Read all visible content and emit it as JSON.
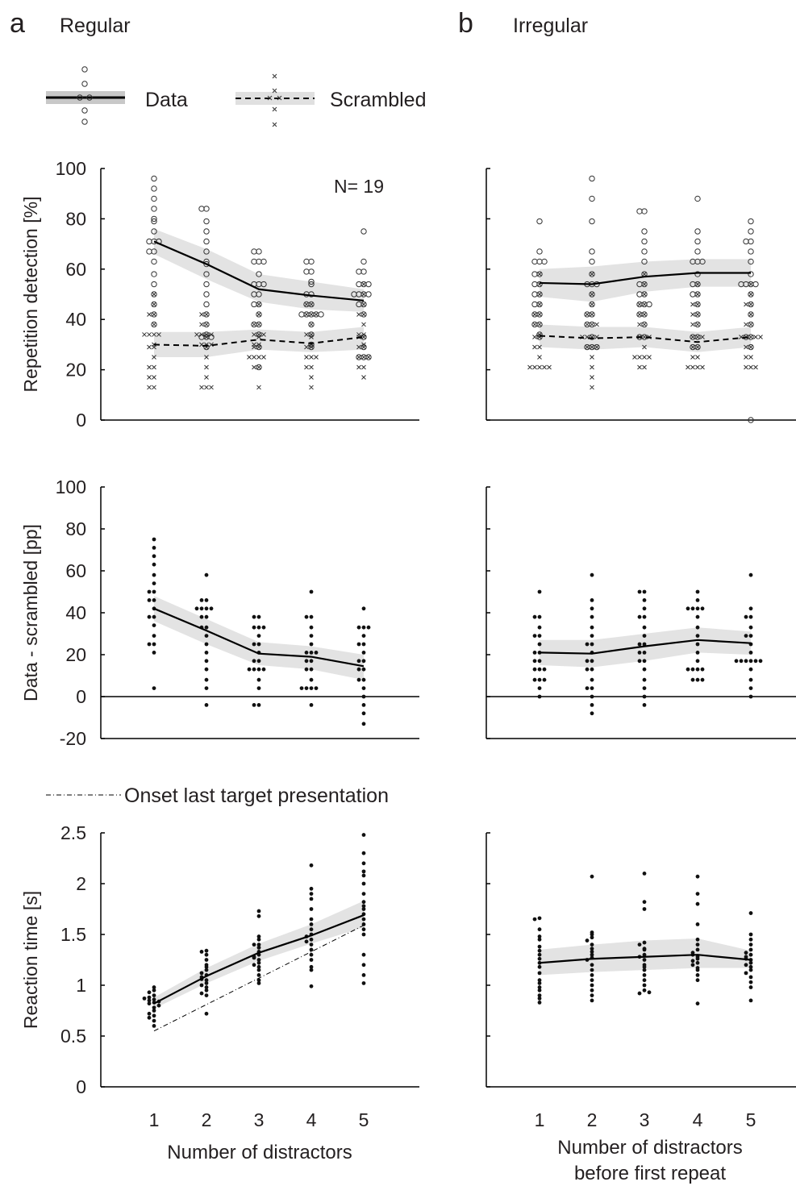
{
  "figure": {
    "panel_a": {
      "letter": "a",
      "title": "Regular"
    },
    "panel_b": {
      "letter": "b",
      "title": "Irregular"
    },
    "legend": {
      "data_label": "Data",
      "scrambled_label": "Scrambled",
      "onset_label": "Onset last target presentation"
    },
    "annotation_n": "N= 19",
    "xlabel_a": "Number of distractors",
    "xlabel_b_line1": "Number of distractors",
    "xlabel_b_line2": "before first repeat"
  },
  "chart_data": [
    {
      "id": "a_top",
      "panel": "a",
      "type": "line",
      "ylabel": "Repetition detection [%]",
      "ylim": [
        0,
        100
      ],
      "yticks": [
        0,
        20,
        40,
        60,
        80,
        100
      ],
      "x": [
        1,
        2,
        3,
        4,
        5
      ],
      "series": [
        {
          "name": "Data",
          "values": [
            71,
            62,
            52,
            49.5,
            47.5
          ],
          "ci_low": [
            66,
            56,
            47,
            44,
            43
          ],
          "ci_high": [
            76,
            68,
            58,
            55,
            52
          ]
        },
        {
          "name": "Scrambled",
          "values": [
            30,
            29.5,
            32,
            30.5,
            33
          ],
          "ci_low": [
            25,
            25,
            28,
            27,
            28
          ],
          "ci_high": [
            35,
            35,
            36,
            35,
            37
          ]
        }
      ],
      "points_data": [
        [
          96,
          92,
          88,
          84,
          80,
          79,
          75,
          71,
          71,
          71,
          67,
          67,
          63,
          58,
          54,
          50,
          46,
          42,
          38
        ],
        [
          84,
          84,
          79,
          75,
          71,
          67,
          63,
          62,
          58,
          54,
          50,
          46,
          42,
          38,
          34,
          33,
          33,
          33,
          29
        ],
        [
          67,
          67,
          63,
          63,
          63,
          58,
          54,
          54,
          54,
          50,
          50,
          46,
          46,
          42,
          38,
          38,
          34,
          29,
          21
        ],
        [
          63,
          63,
          59,
          59,
          55,
          54,
          50,
          50,
          46,
          46,
          42,
          42,
          42,
          42,
          42,
          38,
          34,
          30,
          29
        ],
        [
          75,
          63,
          59,
          59,
          54,
          54,
          54,
          50,
          50,
          50,
          50,
          46,
          46,
          42,
          33,
          29,
          25,
          25,
          25
        ]
      ],
      "points_scrambled": [
        [
          50,
          46,
          42,
          42,
          38,
          34,
          34,
          34,
          34,
          30,
          29,
          25,
          21,
          21,
          17,
          17,
          13,
          13,
          29
        ],
        [
          42,
          42,
          38,
          38,
          34,
          34,
          34,
          34,
          30,
          30,
          30,
          25,
          21,
          17,
          13,
          13,
          13,
          29,
          33
        ],
        [
          46,
          42,
          38,
          34,
          34,
          34,
          30,
          30,
          29,
          25,
          25,
          25,
          21,
          21,
          13,
          38,
          33,
          29,
          25
        ],
        [
          46,
          46,
          42,
          38,
          34,
          34,
          30,
          29,
          25,
          25,
          21,
          21,
          17,
          13,
          42,
          42,
          33,
          29,
          25
        ],
        [
          54,
          50,
          46,
          42,
          42,
          38,
          34,
          34,
          30,
          29,
          25,
          25,
          21,
          21,
          17,
          33,
          33,
          29,
          25
        ]
      ]
    },
    {
      "id": "b_top",
      "panel": "b",
      "type": "line",
      "ylabel": "",
      "ylim": [
        0,
        100
      ],
      "x": [
        1,
        2,
        3,
        4,
        5
      ],
      "series": [
        {
          "name": "Data",
          "values": [
            54.5,
            54,
            57,
            58.5,
            58.5
          ],
          "ci_low": [
            49,
            47,
            51,
            53,
            53
          ],
          "ci_high": [
            60,
            61,
            63,
            64,
            64
          ]
        },
        {
          "name": "Scrambled",
          "values": [
            33.5,
            32.5,
            33,
            31,
            33
          ],
          "ci_low": [
            29,
            28,
            29,
            27,
            29
          ],
          "ci_high": [
            38,
            37,
            37,
            35,
            37
          ]
        }
      ],
      "points_data": [
        [
          79,
          67,
          63,
          63,
          63,
          58,
          58,
          54,
          54,
          50,
          50,
          46,
          46,
          42,
          42,
          38,
          38,
          34,
          33
        ],
        [
          96,
          88,
          79,
          67,
          63,
          58,
          54,
          54,
          54,
          50,
          46,
          42,
          42,
          38,
          38,
          33,
          29,
          29,
          29
        ],
        [
          83,
          83,
          75,
          71,
          67,
          63,
          58,
          54,
          54,
          50,
          50,
          46,
          46,
          46,
          42,
          42,
          38,
          33,
          33
        ],
        [
          88,
          75,
          71,
          67,
          63,
          63,
          63,
          58,
          54,
          54,
          50,
          50,
          46,
          42,
          38,
          33,
          33,
          29,
          29
        ],
        [
          79,
          75,
          71,
          71,
          67,
          63,
          58,
          54,
          54,
          54,
          54,
          50,
          46,
          42,
          38,
          33,
          33,
          29,
          0
        ]
      ],
      "points_scrambled": [
        [
          58,
          54,
          50,
          46,
          42,
          38,
          34,
          33,
          29,
          25,
          21,
          21,
          21,
          21,
          21,
          42,
          38,
          33,
          29
        ],
        [
          58,
          50,
          46,
          42,
          38,
          38,
          33,
          33,
          29,
          29,
          25,
          21,
          17,
          13,
          42,
          38,
          33,
          29,
          33
        ],
        [
          58,
          54,
          50,
          46,
          42,
          38,
          38,
          33,
          33,
          29,
          25,
          25,
          25,
          25,
          21,
          21,
          46,
          42,
          33
        ],
        [
          54,
          50,
          46,
          42,
          38,
          33,
          33,
          29,
          25,
          25,
          21,
          21,
          21,
          21,
          46,
          42,
          38,
          33,
          29
        ],
        [
          54,
          50,
          46,
          42,
          38,
          33,
          33,
          33,
          29,
          25,
          21,
          21,
          46,
          38,
          33,
          29,
          25,
          33,
          21
        ]
      ]
    },
    {
      "id": "a_mid",
      "panel": "a",
      "type": "line",
      "ylabel": "Data - scrambled [pp]",
      "ylim": [
        -20,
        100
      ],
      "yticks": [
        -20,
        0,
        20,
        40,
        60,
        80,
        100
      ],
      "x": [
        1,
        2,
        3,
        4,
        5
      ],
      "series": [
        {
          "name": "Data - scrambled",
          "values": [
            42,
            31.5,
            20.5,
            19,
            14.5
          ],
          "ci_low": [
            36,
            25,
            15,
            13,
            8
          ],
          "ci_high": [
            48,
            37,
            26,
            24,
            20
          ]
        }
      ],
      "points": [
        [
          75,
          71,
          67,
          63,
          58,
          54,
          50,
          50,
          46,
          42,
          38,
          38,
          34,
          29,
          25,
          25,
          21,
          4,
          46
        ],
        [
          58,
          46,
          46,
          42,
          42,
          42,
          42,
          38,
          38,
          33,
          29,
          25,
          21,
          17,
          13,
          8,
          4,
          -4,
          33
        ],
        [
          38,
          38,
          33,
          33,
          33,
          29,
          25,
          25,
          21,
          17,
          17,
          13,
          13,
          13,
          13,
          8,
          4,
          -4,
          -4
        ],
        [
          50,
          38,
          38,
          33,
          29,
          25,
          21,
          21,
          17,
          17,
          13,
          13,
          8,
          4,
          4,
          4,
          4,
          -4,
          21
        ],
        [
          42,
          33,
          33,
          29,
          25,
          25,
          21,
          17,
          13,
          8,
          4,
          0,
          -4,
          -8,
          -13,
          17,
          13,
          33,
          8
        ]
      ]
    },
    {
      "id": "b_mid",
      "panel": "b",
      "type": "line",
      "ylabel": "",
      "ylim": [
        -20,
        100
      ],
      "x": [
        1,
        2,
        3,
        4,
        5
      ],
      "series": [
        {
          "name": "Data - scrambled",
          "values": [
            21,
            20.5,
            24,
            27,
            25.5
          ],
          "ci_low": [
            15,
            14,
            17,
            21,
            20
          ],
          "ci_high": [
            27,
            27,
            30,
            33,
            31
          ]
        }
      ],
      "points": [
        [
          50,
          38,
          38,
          33,
          29,
          29,
          25,
          21,
          21,
          17,
          17,
          13,
          13,
          13,
          8,
          8,
          8,
          4,
          0
        ],
        [
          58,
          46,
          42,
          38,
          33,
          29,
          25,
          25,
          21,
          17,
          17,
          13,
          13,
          8,
          4,
          4,
          0,
          -4,
          -8
        ],
        [
          50,
          50,
          46,
          42,
          38,
          33,
          29,
          25,
          25,
          21,
          21,
          17,
          17,
          13,
          8,
          4,
          0,
          -4,
          38
        ],
        [
          50,
          46,
          42,
          42,
          42,
          42,
          38,
          33,
          29,
          25,
          21,
          17,
          13,
          13,
          13,
          13,
          8,
          8,
          8
        ],
        [
          58,
          42,
          38,
          38,
          33,
          29,
          29,
          25,
          21,
          17,
          17,
          17,
          17,
          17,
          17,
          13,
          8,
          4,
          0
        ]
      ]
    },
    {
      "id": "a_bot",
      "panel": "a",
      "type": "line",
      "ylabel": "Reaction time [s]",
      "ylim": [
        0,
        2.5
      ],
      "yticks": [
        0,
        0.5,
        1,
        1.5,
        2,
        2.5
      ],
      "x": [
        1,
        2,
        3,
        4,
        5
      ],
      "series": [
        {
          "name": "Data",
          "values": [
            0.82,
            1.09,
            1.32,
            1.49,
            1.69
          ],
          "ci_low": [
            0.77,
            1.02,
            1.24,
            1.41,
            1.57
          ],
          "ci_high": [
            0.88,
            1.17,
            1.41,
            1.6,
            1.83
          ]
        },
        {
          "name": "Onset last target presentation",
          "values": [
            0.55,
            0.81,
            1.07,
            1.33,
            1.59
          ]
        }
      ],
      "points": [
        [
          0.98,
          0.95,
          0.93,
          0.9,
          0.88,
          0.86,
          0.85,
          0.84,
          0.83,
          0.82,
          0.8,
          0.78,
          0.75,
          0.72,
          0.7,
          0.68,
          0.65,
          0.6,
          0.87
        ],
        [
          1.34,
          1.33,
          1.3,
          1.25,
          1.2,
          1.18,
          1.15,
          1.12,
          1.1,
          1.08,
          1.05,
          1.02,
          1.0,
          0.98,
          0.95,
          0.92,
          0.9,
          0.72,
          1.06
        ],
        [
          1.73,
          1.68,
          1.48,
          1.45,
          1.4,
          1.37,
          1.33,
          1.3,
          1.28,
          1.25,
          1.22,
          1.2,
          1.15,
          1.1,
          1.05,
          1.02,
          1.4,
          1.27,
          1.18
        ],
        [
          2.18,
          1.95,
          1.9,
          1.85,
          1.75,
          1.65,
          1.6,
          1.55,
          1.5,
          1.48,
          1.45,
          1.4,
          1.35,
          1.3,
          1.25,
          1.18,
          1.15,
          0.99,
          1.43
        ],
        [
          2.48,
          2.3,
          2.2,
          2.12,
          2.08,
          2.0,
          1.9,
          1.82,
          1.75,
          1.7,
          1.65,
          1.6,
          1.55,
          1.5,
          1.3,
          1.2,
          1.1,
          1.02,
          1.78
        ]
      ]
    },
    {
      "id": "b_bot",
      "panel": "b",
      "type": "line",
      "ylabel": "",
      "ylim": [
        0,
        2.5
      ],
      "x": [
        1,
        2,
        3,
        4,
        5
      ],
      "series": [
        {
          "name": "Data",
          "values": [
            1.22,
            1.26,
            1.28,
            1.3,
            1.25
          ],
          "ci_low": [
            1.1,
            1.13,
            1.15,
            1.17,
            1.17
          ],
          "ci_high": [
            1.35,
            1.4,
            1.44,
            1.46,
            1.34
          ]
        }
      ],
      "points": [
        [
          1.66,
          1.65,
          1.55,
          1.45,
          1.38,
          1.34,
          1.3,
          1.26,
          1.22,
          1.18,
          1.12,
          1.05,
          1.02,
          0.98,
          0.95,
          0.9,
          0.87,
          0.83,
          1.48
        ],
        [
          2.07,
          1.52,
          1.5,
          1.47,
          1.44,
          1.4,
          1.36,
          1.3,
          1.27,
          1.25,
          1.2,
          1.15,
          1.1,
          1.05,
          1.0,
          0.95,
          0.9,
          0.85,
          1.33
        ],
        [
          2.1,
          1.82,
          1.75,
          1.42,
          1.4,
          1.35,
          1.3,
          1.28,
          1.25,
          1.2,
          1.18,
          1.15,
          1.1,
          1.05,
          1.0,
          0.95,
          0.92,
          0.93,
          1.36
        ],
        [
          2.07,
          1.9,
          1.8,
          1.6,
          1.45,
          1.4,
          1.35,
          1.32,
          1.28,
          1.26,
          1.24,
          1.22,
          1.2,
          1.17,
          1.15,
          1.1,
          1.05,
          0.82,
          1.3
        ],
        [
          1.71,
          1.5,
          1.45,
          1.4,
          1.35,
          1.32,
          1.3,
          1.28,
          1.25,
          1.22,
          1.2,
          1.18,
          1.15,
          1.12,
          1.08,
          1.03,
          0.98,
          0.85,
          1.26
        ]
      ]
    }
  ]
}
